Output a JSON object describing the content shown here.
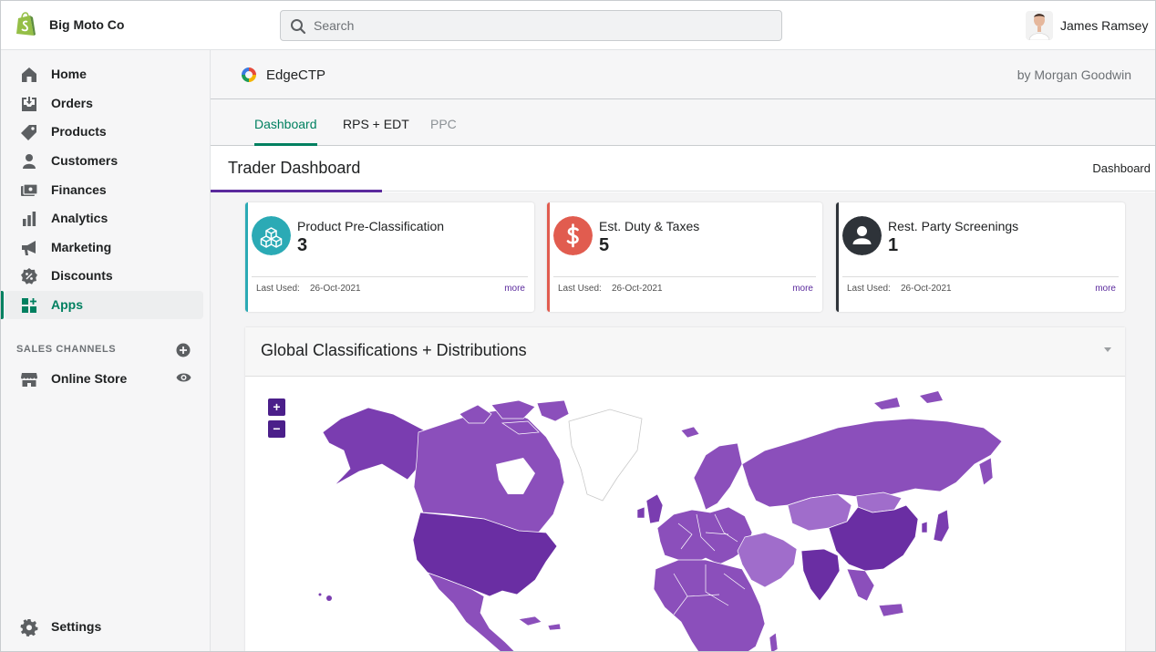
{
  "topbar": {
    "shop_name": "Big Moto Co",
    "search_placeholder": "Search",
    "user_name": "James Ramsey"
  },
  "sidebar": {
    "items": [
      {
        "label": "Home",
        "icon": "home-icon"
      },
      {
        "label": "Orders",
        "icon": "orders-icon"
      },
      {
        "label": "Products",
        "icon": "tag-icon"
      },
      {
        "label": "Customers",
        "icon": "person-icon"
      },
      {
        "label": "Finances",
        "icon": "finances-icon"
      },
      {
        "label": "Analytics",
        "icon": "bar-chart-icon"
      },
      {
        "label": "Marketing",
        "icon": "megaphone-icon"
      },
      {
        "label": "Discounts",
        "icon": "discount-icon"
      },
      {
        "label": "Apps",
        "icon": "apps-icon",
        "active": true
      }
    ],
    "sales_channels_heading": "SALES CHANNELS",
    "online_store": "Online Store",
    "settings": "Settings"
  },
  "app": {
    "name": "EdgeCTP",
    "author": "by Morgan Goodwin",
    "tabs": [
      {
        "label": "Dashboard",
        "active": true
      },
      {
        "label": "RPS + EDT"
      },
      {
        "label": "PPC"
      }
    ],
    "page_title": "Trader Dashboard",
    "breadcrumb": "Dashboard"
  },
  "cards": [
    {
      "title": "Product Pre-Classification",
      "value": "3",
      "last_used_label": "Last Used:",
      "date": "26-Oct-2021",
      "more": "more",
      "color": "#2baab5",
      "icon": "boxes-icon"
    },
    {
      "title": "Est. Duty & Taxes",
      "value": "5",
      "last_used_label": "Last Used:",
      "date": "26-Oct-2021",
      "more": "more",
      "color": "#e15c4f",
      "icon": "dollar-icon"
    },
    {
      "title": "Rest. Party Screenings",
      "value": "1",
      "last_used_label": "Last Used:",
      "date": "26-Oct-2021",
      "more": "more",
      "color": "#2e3339",
      "icon": "person-icon"
    }
  ],
  "map": {
    "title": "Global Classifications + Distributions",
    "zoom_in": "+",
    "zoom_out": "−",
    "colors": {
      "dark": "#6a2ea3",
      "mid": "#8b4fbb",
      "light": "#a06dcb",
      "unfilled": "#ffffff"
    }
  },
  "colors": {
    "accent_green": "#008060",
    "accent_purple": "#5b2a9d"
  }
}
